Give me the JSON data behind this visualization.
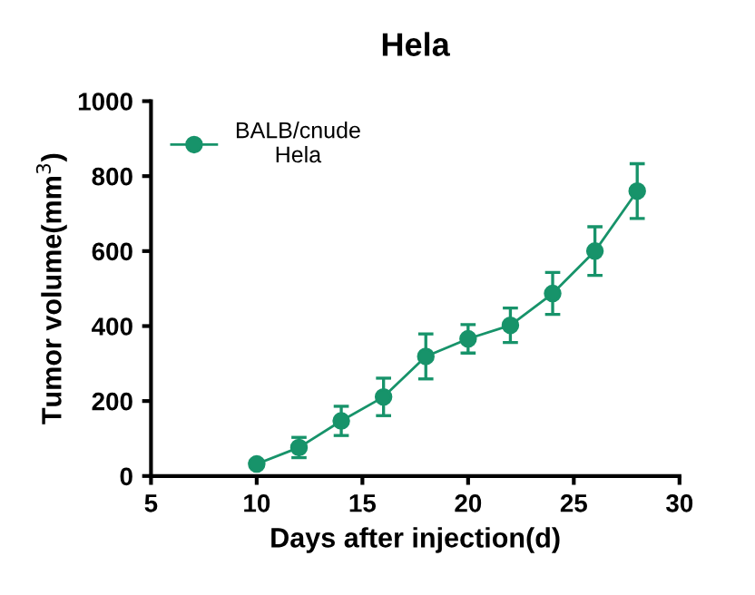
{
  "chart_data": {
    "type": "line",
    "title": "Hela",
    "xlabel": "Days after injection(d)",
    "ylabel": "Tumor volume(mm$^{3}$)",
    "x": [
      10,
      12,
      14,
      16,
      18,
      20,
      22,
      24,
      26,
      28
    ],
    "series": [
      {
        "name": "BALB/cnude\nHela",
        "color": "#17936a",
        "values": [
          32,
          76,
          147,
          211,
          319,
          366,
          402,
          487,
          600,
          760
        ],
        "errors": [
          8,
          27,
          39,
          50,
          60,
          38,
          46,
          56,
          65,
          73
        ]
      }
    ],
    "xlim": [
      5,
      30
    ],
    "xticks": [
      5,
      10,
      15,
      20,
      25,
      30
    ],
    "ylim": [
      0,
      1000
    ],
    "yticks": [
      0,
      200,
      400,
      600,
      800,
      1000
    ],
    "marker": "circle",
    "line_style": "solid",
    "legend": "top left",
    "grid": false
  }
}
